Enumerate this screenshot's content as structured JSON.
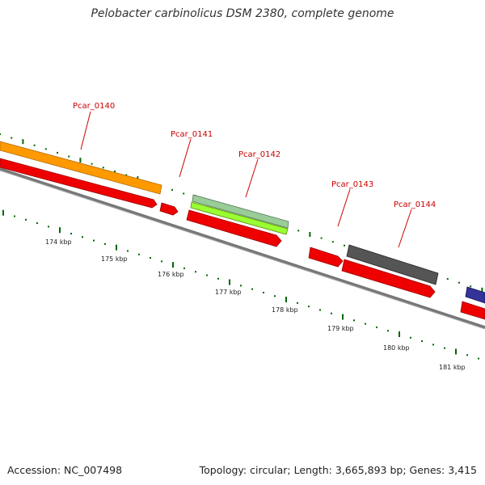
{
  "title": "Pelobacter carbinolicus DSM 2380, complete genome",
  "footer": {
    "accession": "Accession: NC_007498",
    "summary": "Topology: circular; Length: 3,665,893 bp; Genes: 3,415"
  },
  "colors": {
    "forward_cds": "#ff0000",
    "orange_feature": "#ff9900",
    "green_feature": "#99ff33",
    "grey_feature": "#555555",
    "pale_green_feature": "#88bb88",
    "blue_feature": "#333399",
    "backbone": "#888888",
    "ticks": "#006600",
    "gene_label": "#cc0000"
  },
  "genes": [
    {
      "name": "Pcar_0140"
    },
    {
      "name": "Pcar_0141"
    },
    {
      "name": "Pcar_0142"
    },
    {
      "name": "Pcar_0143"
    },
    {
      "name": "Pcar_0144"
    }
  ],
  "scale": {
    "labels": [
      "174 kbp",
      "175 kbp",
      "176 kbp",
      "177 kbp",
      "178 kbp",
      "179 kbp",
      "180 kbp",
      "181 kbp"
    ]
  }
}
